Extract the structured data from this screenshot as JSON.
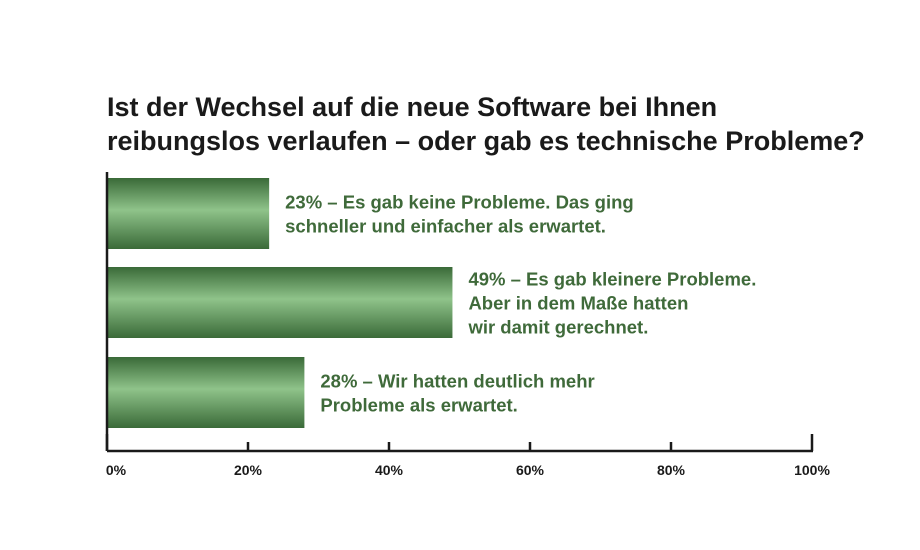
{
  "chart_data": {
    "type": "bar",
    "orientation": "horizontal",
    "title_lines": [
      "Ist der Wechsel auf die neue Software bei Ihnen",
      "reibungslos verlaufen – oder gab es technische Probleme?"
    ],
    "categories": [
      [
        "23% – Es gab keine Probleme. Das ging",
        "schneller und einfacher als erwartet."
      ],
      [
        "49% – Es gab kleinere Probleme.",
        "Aber in dem Maße hatten",
        "wir damit gerechnet."
      ],
      [
        "28% – Wir hatten deutlich mehr",
        "Probleme als erwartet."
      ]
    ],
    "values": [
      23,
      49,
      28
    ],
    "xlim": [
      0,
      100
    ],
    "x_ticks": [
      0,
      20,
      40,
      60,
      80,
      100
    ],
    "x_tick_labels": [
      "0%",
      "20%",
      "40%",
      "60%",
      "80%",
      "100%"
    ],
    "grid": false,
    "colors": {
      "bar_dark": "#3a6a38",
      "bar_light": "#8fc38a",
      "label_text": "#3f6a3a",
      "axis": "#1a1a1a"
    }
  }
}
